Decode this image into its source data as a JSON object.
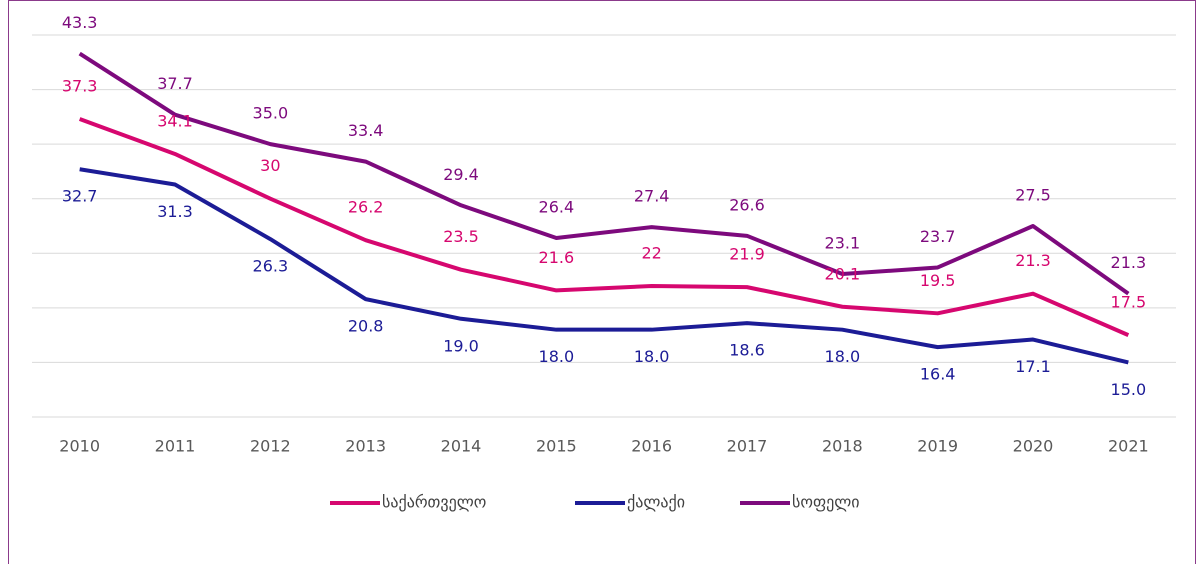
{
  "chart_data": {
    "type": "line",
    "categories": [
      "2010",
      "2011",
      "2012",
      "2013",
      "2014",
      "2015",
      "2016",
      "2017",
      "2018",
      "2019",
      "2020",
      "2021"
    ],
    "series": [
      {
        "name": "საქართველო",
        "color": "#d6076f",
        "values": [
          37.3,
          34.1,
          30,
          26.2,
          23.5,
          21.6,
          22,
          21.9,
          20.1,
          19.5,
          21.3,
          17.5
        ],
        "value_labels": [
          "37.3",
          "34.1",
          "30",
          "26.2",
          "23.5",
          "21.6",
          "22",
          "21.9",
          "20.1",
          "19.5",
          "21.3",
          "17.5"
        ]
      },
      {
        "name": "ქალაქი",
        "color": "#1c1c96",
        "values": [
          32.7,
          31.3,
          26.3,
          20.8,
          19.0,
          18.0,
          18.0,
          18.6,
          18.0,
          16.4,
          17.1,
          15.0
        ],
        "value_labels": [
          "32.7",
          "31.3",
          "26.3",
          "20.8",
          "19.0",
          "18.0",
          "18.0",
          "18.6",
          "18.0",
          "16.4",
          "17.1",
          "15.0"
        ]
      },
      {
        "name": "სოფელი",
        "color": "#7d0a7d",
        "values": [
          43.3,
          37.7,
          35.0,
          33.4,
          29.4,
          26.4,
          27.4,
          26.6,
          23.1,
          23.7,
          27.5,
          21.3
        ],
        "value_labels": [
          "43.3",
          "37.7",
          "35.0",
          "33.4",
          "29.4",
          "26.4",
          "27.4",
          "26.6",
          "23.1",
          "23.7",
          "27.5",
          "21.3"
        ]
      }
    ],
    "ylim": [
      10,
      45
    ],
    "yticks": [
      10,
      15,
      20,
      25,
      30,
      35,
      40,
      45
    ],
    "grid": true,
    "legend": "bottom"
  }
}
